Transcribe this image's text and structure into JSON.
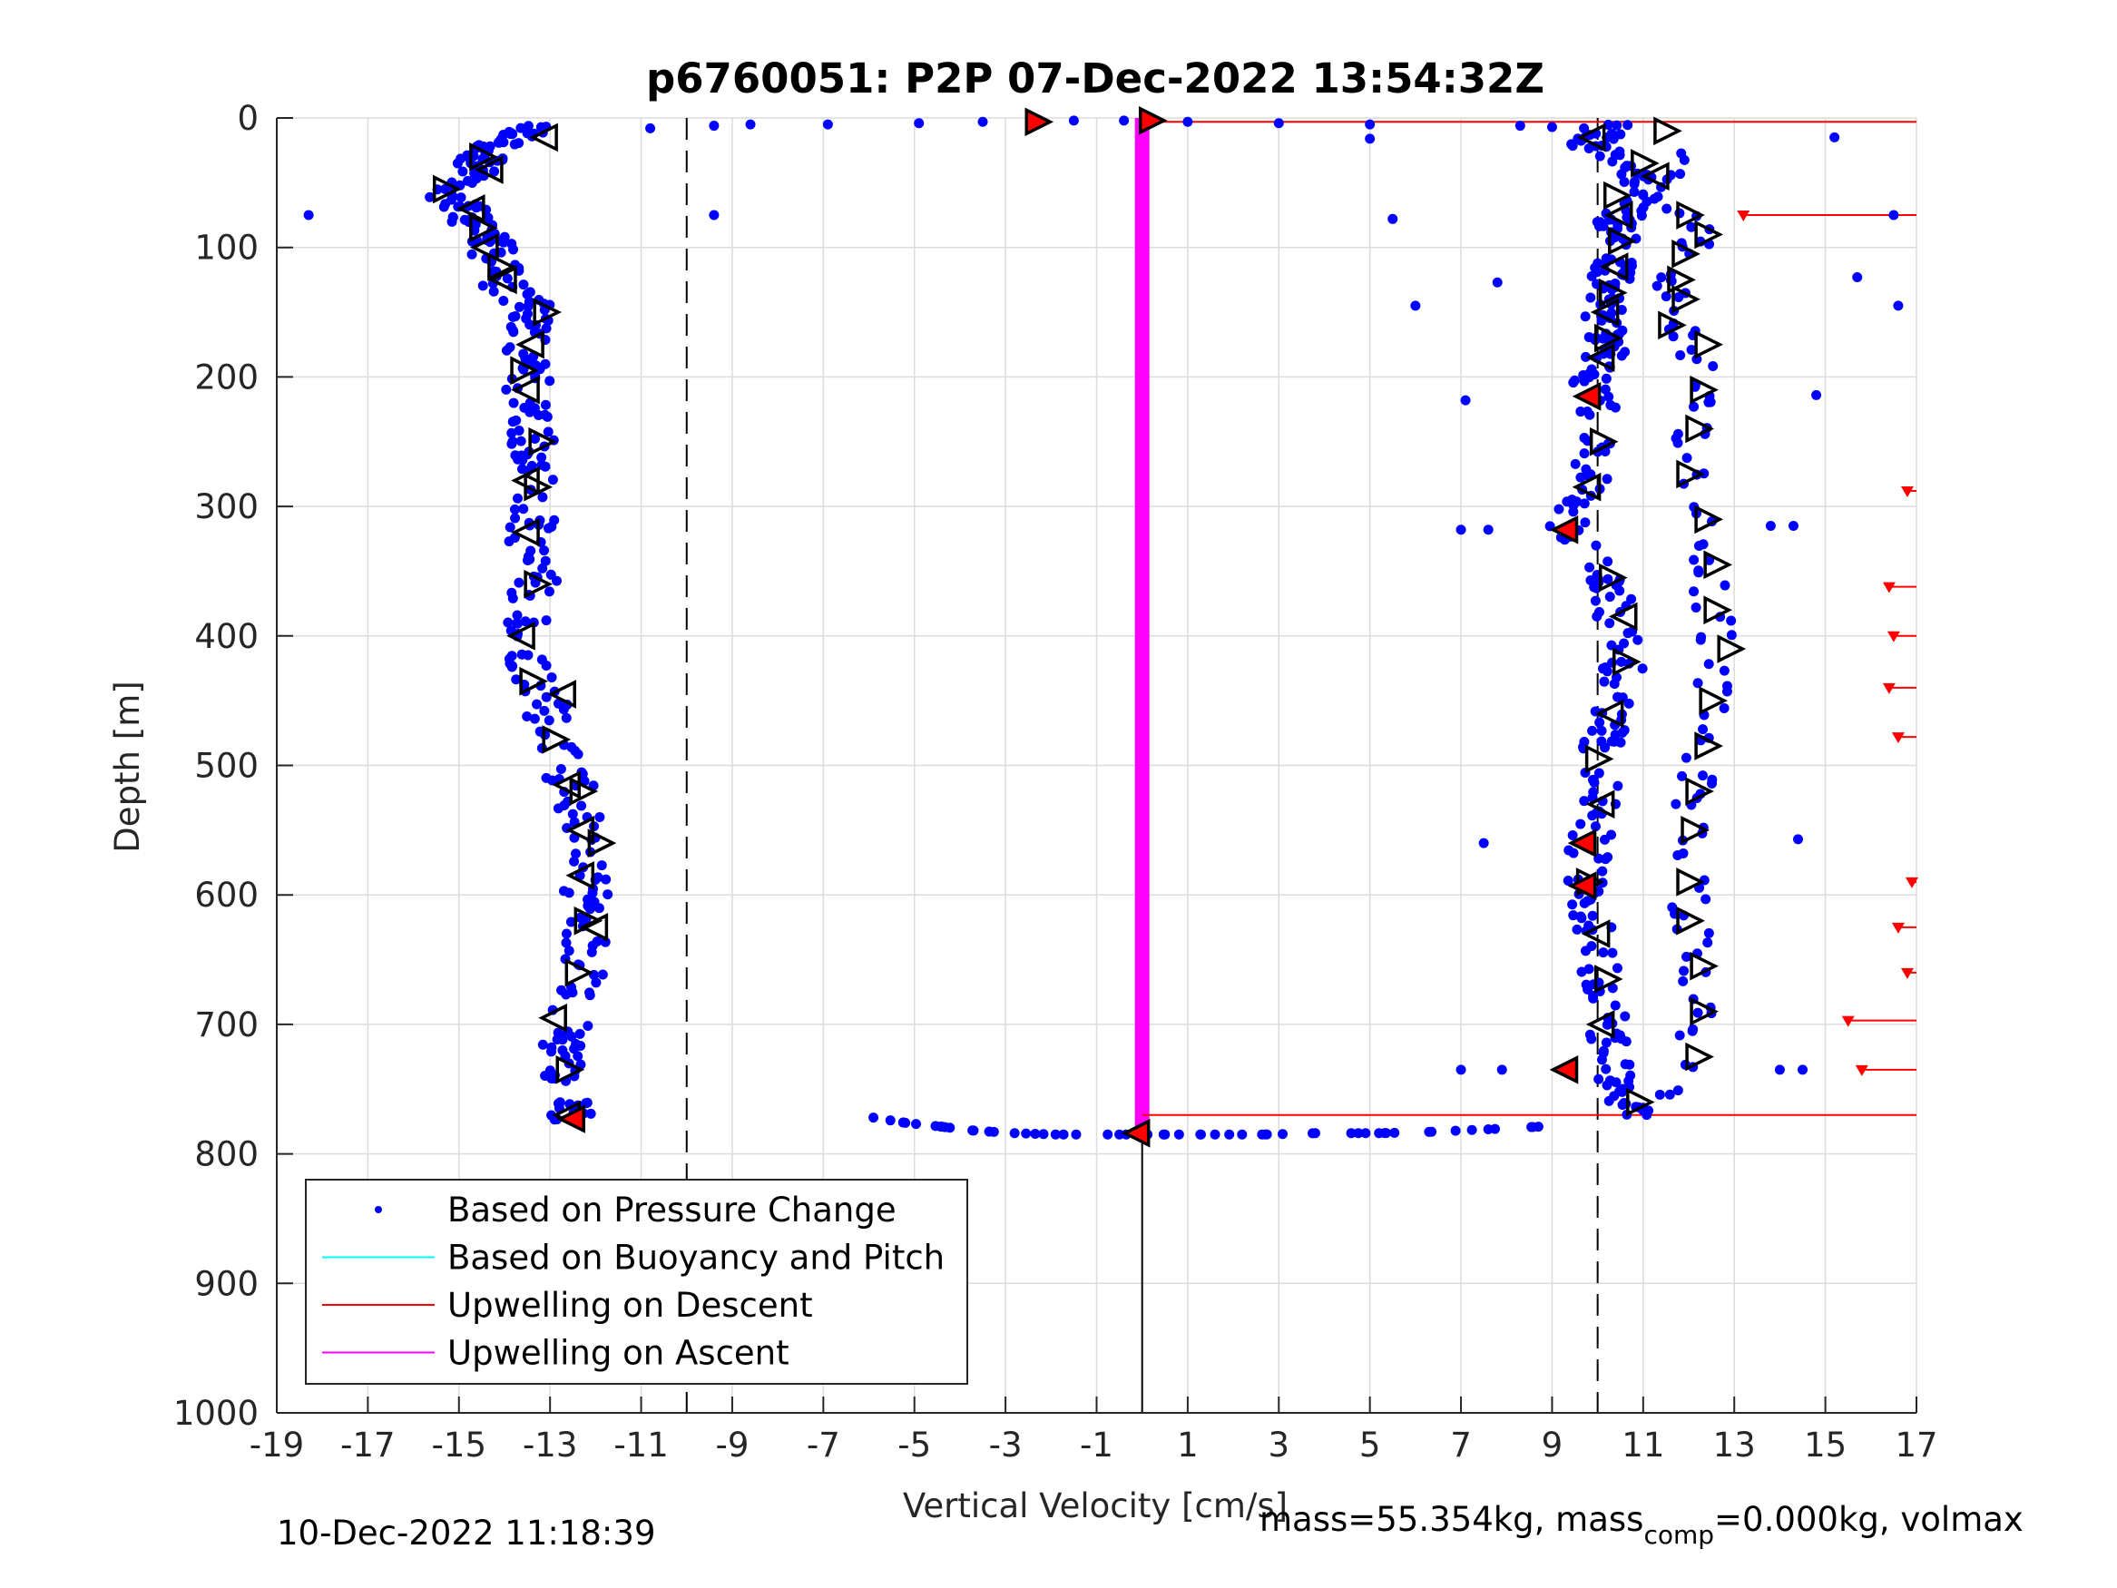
{
  "chart_data": {
    "type": "scatter",
    "title": "p6760051: P2P 07-Dec-2022 13:54:32Z",
    "xlabel": "Vertical Velocity [cm/s]",
    "ylabel": "Depth [m]",
    "xlim": [
      -19,
      17
    ],
    "ylim": [
      0,
      1000
    ],
    "y_reversed": true,
    "xticks": [
      -19,
      -17,
      -15,
      -13,
      -11,
      -9,
      -7,
      -5,
      -3,
      -1,
      1,
      3,
      5,
      7,
      9,
      11,
      13,
      15,
      17
    ],
    "yticks": [
      0,
      100,
      200,
      300,
      400,
      500,
      600,
      700,
      800,
      900,
      1000
    ],
    "grid": true,
    "legend_position": "bottom-left",
    "legend": [
      {
        "label": "Based on Pressure Change",
        "color": "#0000ff",
        "marker": "dot"
      },
      {
        "label": "Based on Buoyancy and Pitch",
        "color": "#00ffff",
        "marker": "line"
      },
      {
        "label": "Upwelling on Descent",
        "color": "#ff0000",
        "marker": "line"
      },
      {
        "label": "Upwelling on Ascent",
        "color": "#ff00ff",
        "marker": "line"
      }
    ],
    "reference_lines": {
      "dashed_x": [
        -10,
        10
      ],
      "solid_x_segment": {
        "x": 0,
        "from_depth": 785,
        "to_depth": 1000
      }
    },
    "descent_profile": {
      "depth": [
        5,
        15,
        25,
        40,
        55,
        75,
        90,
        110,
        130,
        150,
        170,
        200,
        230,
        260,
        300,
        330,
        360,
        400,
        440,
        480,
        520,
        560,
        600,
        640,
        680,
        720,
        760,
        775
      ],
      "velocity": [
        -13.4,
        -13.8,
        -14.4,
        -14.6,
        -15.3,
        -14.8,
        -14.4,
        -14.2,
        -14.0,
        -13.3,
        -13.6,
        -13.5,
        -13.4,
        -13.4,
        -13.3,
        -13.5,
        -13.3,
        -13.6,
        -13.2,
        -12.9,
        -12.5,
        -12.3,
        -12.2,
        -12.2,
        -12.4,
        -12.7,
        -12.6,
        -12.5
      ]
    },
    "ascent_profile": {
      "depth": [
        5,
        20,
        40,
        60,
        80,
        100,
        120,
        140,
        160,
        180,
        200,
        240,
        280,
        320,
        360,
        400,
        440,
        480,
        520,
        560,
        600,
        640,
        680,
        720,
        750,
        770
      ],
      "velocity": [
        10.6,
        9.8,
        10.9,
        11.1,
        10.4,
        10.5,
        10.3,
        10.2,
        10.1,
        10.3,
        9.8,
        10.1,
        9.8,
        9.3,
        10.3,
        10.5,
        10.6,
        10.1,
        10.2,
        9.8,
        9.7,
        10.0,
        10.2,
        10.3,
        10.5,
        10.8
      ]
    },
    "ascent_outer_profile": {
      "depth": [
        10,
        70,
        90,
        110,
        130,
        160,
        180,
        210,
        240,
        270,
        310,
        345,
        380,
        410,
        450,
        485,
        520,
        550,
        590,
        620,
        655,
        690,
        725,
        765
      ],
      "velocity": [
        11.4,
        11.9,
        12.3,
        11.8,
        11.7,
        11.8,
        12.2,
        12.3,
        12.1,
        12.0,
        12.3,
        12.5,
        12.5,
        12.7,
        12.4,
        12.3,
        12.1,
        12.1,
        12.0,
        12.0,
        12.3,
        12.2,
        12.2,
        11.0
      ]
    },
    "surface_transition": {
      "depth": [
        8,
        6,
        5,
        5,
        4,
        3,
        3,
        2,
        2,
        3,
        4,
        5,
        6,
        7,
        8
      ],
      "velocity": [
        -10.8,
        -9.4,
        -8.6,
        -6.9,
        -4.9,
        -3.5,
        -2.3,
        -1.5,
        -0.4,
        1.0,
        3.0,
        5.0,
        8.3,
        9.0,
        9.7
      ]
    },
    "bottom_transition": {
      "depth": [
        772,
        776,
        779,
        782,
        784,
        785,
        785,
        785,
        785,
        785,
        784,
        784,
        783,
        781,
        779
      ],
      "velocity": [
        -5.9,
        -5.2,
        -4.4,
        -3.7,
        -2.8,
        -1.9,
        -0.5,
        0.5,
        1.6,
        2.7,
        3.8,
        5.2,
        6.3,
        7.6,
        8.7
      ]
    },
    "outliers": {
      "depth": [
        75,
        75,
        145,
        127,
        78,
        218,
        318,
        318,
        560,
        735,
        735,
        735,
        735,
        16,
        15,
        123,
        145,
        75,
        214,
        315,
        315,
        557
      ],
      "velocity": [
        -18.3,
        -9.4,
        6.0,
        7.8,
        5.5,
        7.1,
        7.0,
        7.6,
        7.5,
        7.0,
        7.9,
        14.0,
        14.5,
        5.0,
        15.2,
        15.7,
        16.6,
        16.5,
        14.8,
        13.8,
        14.3,
        14.4
      ]
    },
    "triangle_markers_descent": {
      "depth": [
        15,
        30,
        40,
        55,
        70,
        85,
        100,
        115,
        125,
        150,
        175,
        195,
        210,
        250,
        280,
        285,
        320,
        360,
        400,
        435,
        445,
        480,
        515,
        520,
        550,
        560,
        585,
        620,
        625,
        660,
        695,
        735,
        770
      ],
      "velocity": [
        -13.1,
        -14.5,
        -14.3,
        -15.3,
        -14.7,
        -14.5,
        -14.4,
        -14.1,
        -14.0,
        -13.1,
        -13.4,
        -13.6,
        -13.5,
        -13.2,
        -13.5,
        -13.3,
        -13.5,
        -13.3,
        -13.6,
        -13.4,
        -12.7,
        -12.9,
        -12.6,
        -12.3,
        -12.3,
        -11.9,
        -12.3,
        -12.2,
        -12.0,
        -12.4,
        -12.9,
        -12.6,
        -12.6
      ]
    },
    "triangle_markers_ascent": {
      "depth": [
        15,
        35,
        45,
        60,
        75,
        95,
        115,
        135,
        150,
        170,
        185,
        250,
        285,
        355,
        385,
        420,
        460,
        495,
        530,
        590,
        630,
        665,
        700,
        760
      ],
      "velocity": [
        9.9,
        11.0,
        11.3,
        10.4,
        10.5,
        10.5,
        10.4,
        10.3,
        10.2,
        10.2,
        10.1,
        10.1,
        9.8,
        10.3,
        10.6,
        10.6,
        10.3,
        10.0,
        10.1,
        9.8,
        10.0,
        10.2,
        10.1,
        10.9
      ]
    },
    "triangle_markers_outer": {
      "depth": [
        10,
        75,
        90,
        105,
        125,
        140,
        160,
        175,
        210,
        240,
        275,
        310,
        345,
        380,
        410,
        450,
        485,
        520,
        550,
        590,
        620,
        655,
        690,
        725
      ],
      "velocity": [
        11.5,
        12.0,
        12.4,
        11.9,
        11.8,
        11.9,
        11.6,
        12.4,
        12.3,
        12.2,
        12.0,
        12.4,
        12.6,
        12.6,
        12.9,
        12.5,
        12.4,
        12.2,
        12.1,
        12.0,
        12.0,
        12.3,
        12.3,
        12.2
      ]
    },
    "red_triangle_markers": {
      "depth": [
        3,
        2,
        215,
        318,
        560,
        593,
        735,
        773,
        784
      ],
      "velocity": [
        -2.3,
        0.2,
        9.8,
        9.3,
        9.7,
        9.7,
        9.3,
        -12.5,
        -0.1
      ]
    },
    "upwelling_on_ascent": {
      "x": 0,
      "depth_from": 0,
      "depth_to": 780,
      "color": "#ff00ff"
    },
    "upwelling_on_descent": {
      "lines": [
        {
          "depth": 3,
          "x_from": 0,
          "x_to": 17
        },
        {
          "depth": 75,
          "x_from": 13.2,
          "x_to": 17
        },
        {
          "depth": 770,
          "x_from": 0,
          "x_to": 17
        },
        {
          "depth": 288,
          "x_from": 16.8,
          "x_to": 17
        },
        {
          "depth": 362,
          "x_from": 16.4,
          "x_to": 17
        },
        {
          "depth": 400,
          "x_from": 16.5,
          "x_to": 17
        },
        {
          "depth": 440,
          "x_from": 16.4,
          "x_to": 17
        },
        {
          "depth": 478,
          "x_from": 16.6,
          "x_to": 17
        },
        {
          "depth": 590,
          "x_from": 16.9,
          "x_to": 17
        },
        {
          "depth": 625,
          "x_from": 16.6,
          "x_to": 17
        },
        {
          "depth": 660,
          "x_from": 16.8,
          "x_to": 17
        },
        {
          "depth": 697,
          "x_from": 15.5,
          "x_to": 17
        },
        {
          "depth": 735,
          "x_from": 15.8,
          "x_to": 17
        }
      ],
      "marker_depths": [
        75,
        288,
        362,
        400,
        440,
        478,
        590,
        625,
        660,
        697,
        735
      ],
      "marker_velocities": [
        13.2,
        16.8,
        16.4,
        16.5,
        16.4,
        16.6,
        16.9,
        16.6,
        16.8,
        15.5,
        15.8
      ],
      "color": "#ff0000"
    }
  },
  "footer": {
    "timestamp": "10-Dec-2022 11:18:39",
    "mass_text_1": "mass=55.354kg, mass",
    "mass_sub": "comp",
    "mass_text_2": "=0.000kg, volmax"
  }
}
